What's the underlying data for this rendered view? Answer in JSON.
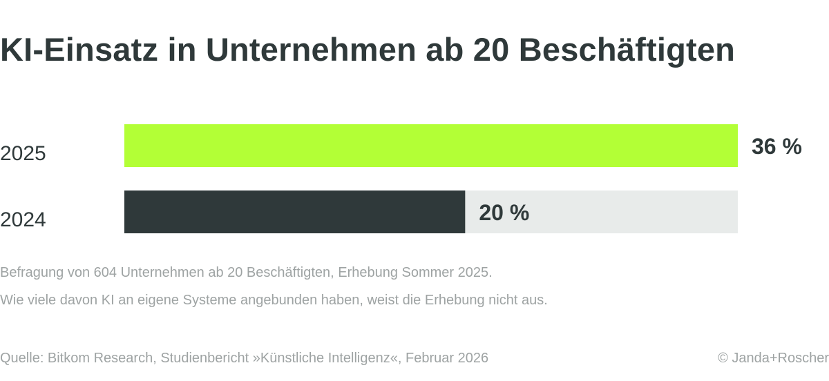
{
  "title": "KI-Einsatz in Unternehmen ab 20 Beschäftigten",
  "notes": [
    "Befragung von 604 Unternehmen ab 20 Beschäftigten, Erhebung Sommer 2025.",
    "Wie viele davon KI an eigene Systeme angebunden haben, weist die Erhebung nicht aus."
  ],
  "source": "Quelle: Bitkom Research, Studienbericht »Künstliche Intelligenz«, Februar 2026",
  "copyright": "© Janda+Roscher",
  "chart_data": {
    "type": "bar",
    "orientation": "horizontal",
    "categories": [
      "2025",
      "2024"
    ],
    "values": [
      36,
      20
    ],
    "value_labels": [
      "36 %",
      "20 %"
    ],
    "xlim": [
      0,
      36
    ],
    "colors": {
      "bar_2025": "#b3ff36",
      "bar_2024": "#2f393a",
      "track": "#e8ebea",
      "text": "#2f393a"
    },
    "grid": false,
    "legend": "none"
  }
}
